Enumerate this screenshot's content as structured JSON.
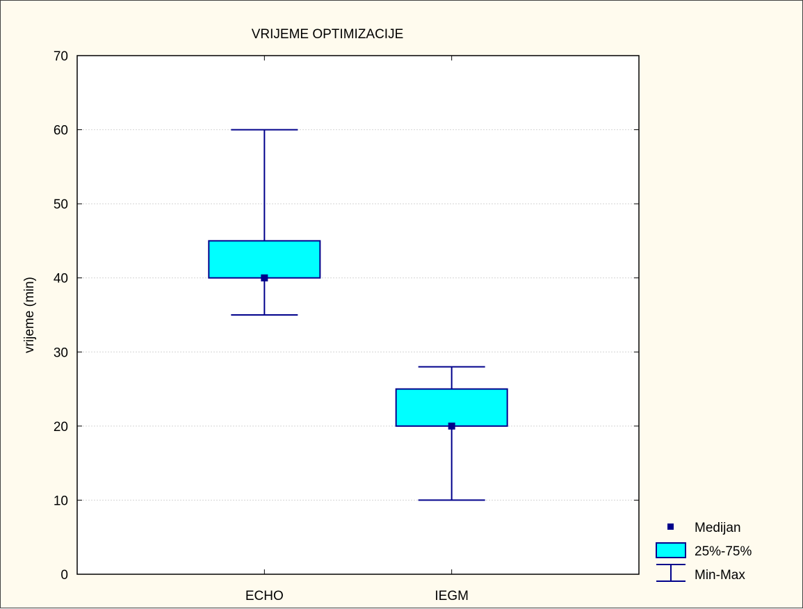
{
  "chart_data": {
    "type": "boxplot",
    "title": "VRIJEME OPTIMIZACIJE",
    "xlabel": "",
    "ylabel": "vrijeme (min)",
    "ylim": [
      0,
      70
    ],
    "yticks": [
      "0",
      "10",
      "20",
      "30",
      "40",
      "50",
      "60",
      "70"
    ],
    "categories": [
      "ECHO",
      "IEGM"
    ],
    "boxes": [
      {
        "category": "ECHO",
        "min": 35,
        "q1": 40,
        "median": 40,
        "q3": 45,
        "max": 60
      },
      {
        "category": "IEGM",
        "min": 10,
        "q1": 20,
        "median": 20,
        "q3": 25,
        "max": 28
      }
    ],
    "grid": true,
    "legend": {
      "placement": "bottom-right outside",
      "entries": [
        "Medijan",
        "25%-75%",
        "Min-Max"
      ]
    },
    "colors": {
      "box_fill": "#00ffff",
      "line": "#00008b",
      "background": "#fffbee",
      "plot_area": "#ffffff"
    }
  }
}
